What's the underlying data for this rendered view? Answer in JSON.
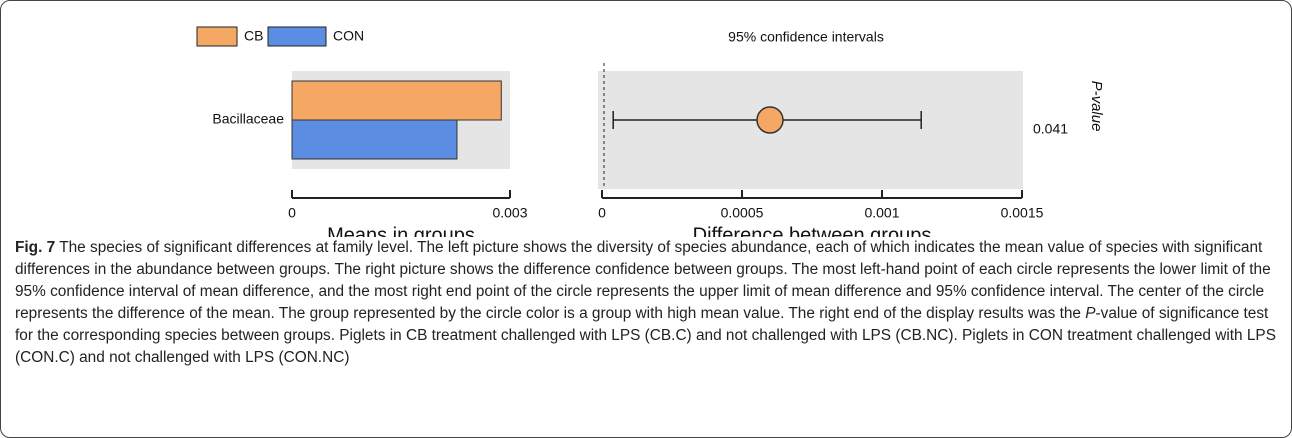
{
  "chart_data": [
    {
      "type": "hbar",
      "categories": [
        "Bacillaceae"
      ],
      "series": [
        {
          "name": "CB",
          "color": "#f5a863",
          "values": [
            0.00288
          ]
        },
        {
          "name": "CON",
          "color": "#5b8de3",
          "values": [
            0.00227
          ]
        }
      ],
      "xlim": [
        0,
        0.003
      ],
      "xticks": [
        0,
        0.003
      ],
      "xlabel": "Means in groups"
    },
    {
      "type": "errorbar",
      "title": "95% confidence intervals",
      "categories": [
        "Bacillaceae"
      ],
      "values": [
        0.0006
      ],
      "lower": [
        4e-05
      ],
      "upper": [
        0.00114
      ],
      "color": "#f5a863",
      "xlim": [
        0,
        0.0015
      ],
      "xticks": [
        0,
        0.0005,
        0.001,
        0.0015
      ],
      "xlabel": "Difference between groups",
      "p_values": [
        0.041
      ],
      "ylabel": "P-value"
    }
  ],
  "caption": {
    "label": "Fig. 7",
    "segments": [
      {
        "text": " The species of significant differences at family level. The left picture shows the diversity of species abundance, each of which indicates the mean value of species with significant differences in the abundance between groups. The right picture shows the difference confidence between groups. The most left-hand point of each circle represents the lower limit of the 95% confidence interval of mean difference, and the most right end point of the circle represents the upper limit of mean difference and 95% confidence interval. The center of the circle represents the difference of the mean. The group represented by the circle color is a group with high mean value. The right end of the display results was the ",
        "italic": false
      },
      {
        "text": "P",
        "italic": true
      },
      {
        "text": "-value of significance test for the corresponding species between groups. Piglets in CB treatment challenged with LPS (CB.C) and not challenged with LPS (CB.NC). Piglets in CON treatment challenged with LPS (CON.C) and not challenged with LPS (CON.NC)",
        "italic": false
      }
    ]
  }
}
